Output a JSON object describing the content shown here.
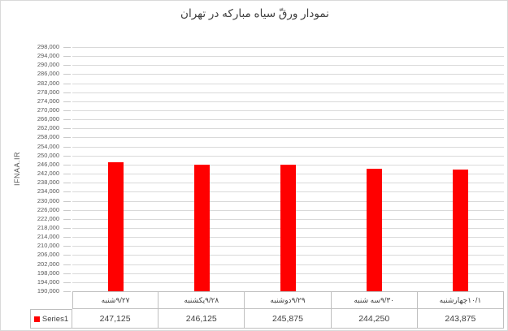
{
  "title": "نمودار ورقّ سیاه مبارکه در تهران",
  "colors": {
    "bar": "#FF0000",
    "gridline": "#D9D9D9",
    "table_border": "#BFBFBF",
    "tick_text": "#595959",
    "title_text": "#404040"
  },
  "y_axis": {
    "title": "IFNAA.IR",
    "min": 190000,
    "max": 298000,
    "step": 4000,
    "tick_labels_top_to_bottom": [
      "298,000",
      "294,000",
      "290,000",
      "286,000",
      "282,000",
      "278,000",
      "274,000",
      "270,000",
      "266,000",
      "262,000",
      "258,000",
      "254,000",
      "250,000",
      "246,000",
      "242,000",
      "238,000",
      "234,000",
      "230,000",
      "226,000",
      "222,000",
      "218,000",
      "214,000",
      "210,000",
      "206,000",
      "202,000",
      "198,000",
      "194,000",
      "190,000"
    ]
  },
  "chart_data": {
    "type": "bar",
    "title": "نمودار ورقّ سیاه مبارکه در تهران",
    "xlabel": "",
    "ylabel": "IFNAA.IR",
    "ylim": [
      190000,
      298000
    ],
    "grid": true,
    "legend_position": "bottom-table",
    "categories": [
      {
        "word": "شنبه",
        "date": "۹/۲۷"
      },
      {
        "word": "یکشنبه",
        "date": "۹/۲۸"
      },
      {
        "word": "دوشنبه",
        "date": "۹/۲۹"
      },
      {
        "word": "سه شنبه",
        "date": "۹/۳۰"
      },
      {
        "word": "چهارشنبه",
        "date": "۱۰/۱"
      }
    ],
    "series": [
      {
        "name": "Series1",
        "color": "#FF0000",
        "values": [
          247125,
          246125,
          245875,
          244250,
          243875
        ],
        "value_labels": [
          "247,125",
          "246,125",
          "245,875",
          "244,250",
          "243,875"
        ]
      }
    ]
  },
  "table": {
    "legend_label": "Series1"
  }
}
